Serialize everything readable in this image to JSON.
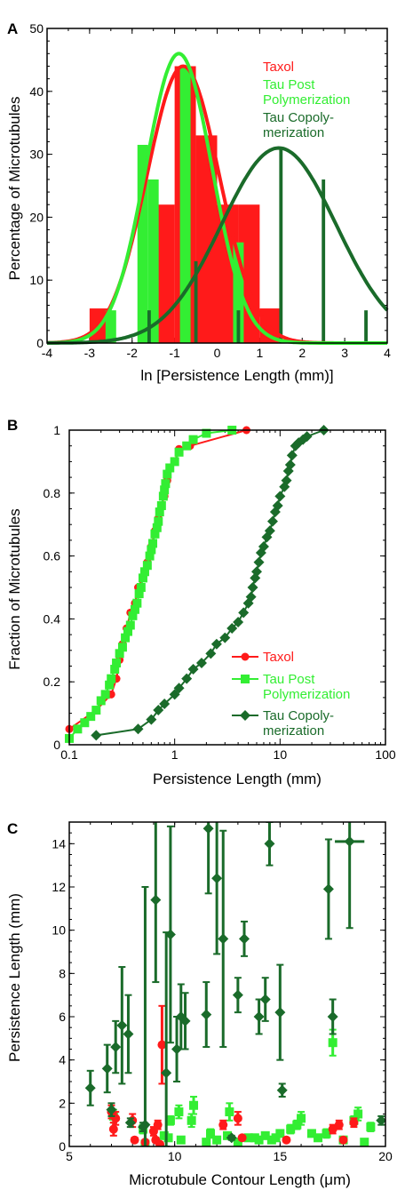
{
  "colors": {
    "taxol": "#ff1a1a",
    "tau_post": "#33ee33",
    "tau_copoly": "#1a6b2a",
    "axis": "#000000"
  },
  "chart_data": [
    {
      "panel": "A",
      "type": "bar",
      "xlabel": "ln [Persistence Length (mm)]",
      "ylabel": "Percentage of Microtubules",
      "xlim": [
        -4,
        4
      ],
      "ylim": [
        0,
        50
      ],
      "xticks": [
        "-4",
        "-3",
        "-2",
        "-1",
        "0",
        "1",
        "2",
        "3",
        "4"
      ],
      "yticks": [
        "0",
        "10",
        "20",
        "30",
        "40",
        "50"
      ],
      "legend_position": "top-right",
      "legend": [
        "Taxol",
        "Tau Post",
        "Polymerization",
        "Tau Copoly-",
        "merization"
      ],
      "series": [
        {
          "name": "Taxol",
          "bin_width": 0.5,
          "bins": [
            [
              -2.75,
              5.5
            ],
            [
              -2.25,
              0
            ],
            [
              -1.75,
              0
            ],
            [
              -1.25,
              22
            ],
            [
              -0.75,
              44
            ],
            [
              -0.25,
              33
            ],
            [
              0.25,
              22
            ],
            [
              0.75,
              22
            ],
            [
              1.25,
              5.5
            ]
          ],
          "fit": {
            "mean": -0.8,
            "sd": 0.85,
            "peak": 44
          }
        },
        {
          "name": "Tau Post Polymerization",
          "bin_width": 0.25,
          "bins": [
            [
              -2.5,
              5.2
            ],
            [
              -1.75,
              31.5
            ],
            [
              -1.5,
              26
            ],
            [
              -0.75,
              44
            ],
            [
              0.5,
              16
            ],
            [
              0.75,
              0
            ]
          ],
          "fit": {
            "mean": -0.9,
            "sd": 0.78,
            "peak": 46
          }
        },
        {
          "name": "Tau Copolymerization",
          "bin_width": 0.08,
          "bins": [
            [
              -1.6,
              5.2
            ],
            [
              -0.5,
              13
            ],
            [
              0.5,
              5.2
            ],
            [
              1.5,
              31
            ],
            [
              2.5,
              26
            ],
            [
              3.5,
              5.2
            ]
          ],
          "fit": {
            "mean": 1.45,
            "sd": 1.35,
            "peak": 31
          }
        }
      ]
    },
    {
      "panel": "B",
      "type": "line",
      "xscale": "log",
      "xlabel": "Persistence Length (mm)",
      "ylabel": "Fraction of Microtubules",
      "xlim": [
        0.1,
        100
      ],
      "ylim": [
        0,
        1
      ],
      "xticks": [
        "0.1",
        "1",
        "10",
        "100"
      ],
      "yticks": [
        "0",
        "0.2",
        "0.4",
        "0.6",
        "0.8",
        "1"
      ],
      "legend_position": "lower-right",
      "legend": [
        "Taxol",
        "Tau Post",
        "Polymerization",
        "Tau Copoly-",
        "merization"
      ],
      "series": [
        {
          "name": "Taxol",
          "x": [
            0.1,
            0.18,
            0.25,
            0.28,
            0.3,
            0.32,
            0.35,
            0.38,
            0.42,
            0.45,
            0.5,
            0.55,
            0.6,
            0.65,
            0.7,
            0.75,
            0.8,
            0.85,
            0.9,
            1.0,
            1.1,
            1.4,
            4.8
          ],
          "y": [
            0.05,
            0.11,
            0.16,
            0.21,
            0.27,
            0.32,
            0.37,
            0.42,
            0.45,
            0.5,
            0.53,
            0.58,
            0.63,
            0.68,
            0.72,
            0.76,
            0.79,
            0.84,
            0.88,
            0.9,
            0.94,
            0.95,
            1.0
          ]
        },
        {
          "name": "Tau Post Polymerization",
          "x": [
            0.1,
            0.12,
            0.14,
            0.16,
            0.18,
            0.2,
            0.22,
            0.24,
            0.25,
            0.27,
            0.28,
            0.3,
            0.32,
            0.34,
            0.36,
            0.38,
            0.4,
            0.42,
            0.44,
            0.46,
            0.48,
            0.5,
            0.52,
            0.55,
            0.58,
            0.6,
            0.62,
            0.65,
            0.68,
            0.7,
            0.72,
            0.75,
            0.78,
            0.8,
            0.82,
            0.85,
            0.9,
            1.0,
            1.1,
            1.3,
            1.5,
            2.0,
            3.5
          ],
          "y": [
            0.02,
            0.05,
            0.07,
            0.09,
            0.11,
            0.14,
            0.16,
            0.19,
            0.21,
            0.24,
            0.26,
            0.29,
            0.31,
            0.34,
            0.36,
            0.38,
            0.41,
            0.43,
            0.45,
            0.48,
            0.5,
            0.53,
            0.55,
            0.57,
            0.6,
            0.62,
            0.64,
            0.67,
            0.69,
            0.71,
            0.74,
            0.76,
            0.79,
            0.81,
            0.83,
            0.86,
            0.88,
            0.9,
            0.93,
            0.95,
            0.97,
            0.99,
            1.0
          ]
        },
        {
          "name": "Tau Copolymerization",
          "x": [
            0.18,
            0.45,
            0.6,
            0.7,
            0.8,
            1.0,
            1.1,
            1.3,
            1.5,
            1.8,
            2.2,
            2.5,
            3.0,
            3.5,
            4.0,
            4.5,
            5.0,
            5.3,
            5.5,
            5.8,
            6.0,
            6.3,
            6.6,
            7.0,
            7.5,
            8.0,
            8.5,
            9.0,
            9.5,
            10.0,
            11.0,
            11.5,
            12.0,
            12.5,
            13.0,
            14.0,
            15.0,
            16.5,
            18.0,
            26.0
          ],
          "y": [
            0.03,
            0.05,
            0.08,
            0.11,
            0.13,
            0.16,
            0.18,
            0.21,
            0.24,
            0.26,
            0.29,
            0.32,
            0.34,
            0.37,
            0.39,
            0.42,
            0.45,
            0.47,
            0.5,
            0.53,
            0.55,
            0.58,
            0.61,
            0.63,
            0.66,
            0.68,
            0.71,
            0.74,
            0.76,
            0.79,
            0.82,
            0.84,
            0.87,
            0.89,
            0.92,
            0.95,
            0.96,
            0.97,
            0.98,
            1.0
          ]
        }
      ]
    },
    {
      "panel": "C",
      "type": "scatter",
      "xlabel": "Microtubule Contour Length (μm)",
      "ylabel": "Persistence Length (mm)",
      "xlim": [
        5,
        20
      ],
      "ylim": [
        0,
        15
      ],
      "xticks": [
        "5",
        "10",
        "15",
        "20"
      ],
      "yticks": [
        "0",
        "2",
        "4",
        "6",
        "8",
        "10",
        "12",
        "14"
      ],
      "series": [
        {
          "name": "Taxol",
          "marker": "circle",
          "points": [
            [
              7.0,
              1.6,
              0.3
            ],
            [
              7.1,
              0.8,
              0.3
            ],
            [
              7.2,
              1.3,
              0.3
            ],
            [
              8.0,
              1.2,
              0.3
            ],
            [
              8.1,
              0.3,
              0.1
            ],
            [
              8.6,
              0.2,
              0.1
            ],
            [
              9.0,
              0.7,
              0.2
            ],
            [
              9.1,
              0.3,
              0.1
            ],
            [
              9.2,
              1.0,
              0.2
            ],
            [
              9.3,
              0.1,
              0.05
            ],
            [
              9.4,
              4.7,
              1.8
            ],
            [
              12.3,
              1.0,
              0.2
            ],
            [
              13.0,
              1.3,
              0.3
            ],
            [
              13.2,
              0.4,
              0.1
            ],
            [
              15.3,
              0.3,
              0.1
            ],
            [
              17.5,
              0.8,
              0.2
            ],
            [
              17.8,
              1.0,
              0.2
            ],
            [
              18.0,
              0.3,
              0.1
            ],
            [
              18.5,
              1.1,
              0.2
            ]
          ]
        },
        {
          "name": "Tau Post Polymerization",
          "marker": "square",
          "points": [
            [
              7.1,
              1.4,
              0.3
            ],
            [
              8.5,
              0.8,
              0.2
            ],
            [
              8.6,
              0.1,
              0.05
            ],
            [
              9.5,
              0.5,
              0.1
            ],
            [
              9.7,
              0.4,
              0.1
            ],
            [
              9.8,
              1.2,
              0.2
            ],
            [
              10.2,
              1.6,
              0.3
            ],
            [
              10.3,
              0.3,
              0.1
            ],
            [
              10.8,
              1.2,
              0.3
            ],
            [
              10.9,
              1.9,
              0.4
            ],
            [
              11.5,
              0.2,
              0.05
            ],
            [
              11.7,
              0.6,
              0.2
            ],
            [
              12.0,
              0.3,
              0.1
            ],
            [
              12.5,
              0.5,
              0.1
            ],
            [
              12.6,
              1.6,
              0.4
            ],
            [
              13.0,
              0.2,
              0.05
            ],
            [
              13.5,
              0.4,
              0.1
            ],
            [
              13.8,
              0.4,
              0.1
            ],
            [
              14.0,
              0.3,
              0.1
            ],
            [
              14.3,
              0.5,
              0.1
            ],
            [
              14.6,
              0.3,
              0.1
            ],
            [
              14.8,
              0.4,
              0.1
            ],
            [
              15.0,
              0.6,
              0.1
            ],
            [
              15.5,
              0.8,
              0.2
            ],
            [
              15.8,
              1.0,
              0.2
            ],
            [
              16.0,
              1.3,
              0.3
            ],
            [
              16.5,
              0.6,
              0.1
            ],
            [
              16.8,
              0.4,
              0.1
            ],
            [
              17.2,
              0.6,
              0.2
            ],
            [
              17.5,
              4.8,
              0.6
            ],
            [
              18.0,
              0.3,
              0.1
            ],
            [
              18.5,
              1.2,
              0.2
            ],
            [
              18.7,
              1.5,
              0.3
            ],
            [
              19.0,
              0.2,
              0.05
            ],
            [
              19.3,
              0.9,
              0.2
            ]
          ]
        },
        {
          "name": "Tau Copolymerization",
          "marker": "diamond",
          "points": [
            [
              6.0,
              2.7,
              0.8
            ],
            [
              6.8,
              3.6,
              1.1
            ],
            [
              7.0,
              1.7,
              0.3
            ],
            [
              7.2,
              4.6,
              1.2
            ],
            [
              7.5,
              5.6,
              2.7
            ],
            [
              7.8,
              5.2,
              1.8
            ],
            [
              7.9,
              1.1,
              0.2
            ],
            [
              8.5,
              0.9,
              0.2
            ],
            [
              8.6,
              1.0,
              11.0
            ],
            [
              9.1,
              11.4,
              3.8
            ],
            [
              9.6,
              3.4,
              6.5
            ],
            [
              9.8,
              9.8,
              5.0
            ],
            [
              10.1,
              4.5,
              1.5
            ],
            [
              10.3,
              6.0,
              1.5
            ],
            [
              10.5,
              5.8,
              1.3
            ],
            [
              11.5,
              6.1,
              1.5
            ],
            [
              11.6,
              14.7,
              3.0
            ],
            [
              12.0,
              12.4,
              3.5
            ],
            [
              12.3,
              9.6,
              5.0
            ],
            [
              12.7,
              0.4,
              0.1
            ],
            [
              13.0,
              7.0,
              0.8
            ],
            [
              13.3,
              9.6,
              0.8
            ],
            [
              14.0,
              6.0,
              0.8
            ],
            [
              14.3,
              6.8,
              1.0
            ],
            [
              14.5,
              14.0,
              1.0
            ],
            [
              15.0,
              6.2,
              2.2
            ],
            [
              15.1,
              2.6,
              0.3
            ],
            [
              17.3,
              11.9,
              2.3
            ],
            [
              17.5,
              6.0,
              0.8
            ],
            [
              18.3,
              14.1,
              4.0
            ],
            [
              19.8,
              1.2,
              0.2
            ]
          ]
        }
      ]
    }
  ],
  "panelA": {
    "letter": "A",
    "xlabel": "ln [Persistence Length (mm)]",
    "ylabel": "Percentage of Microtubules",
    "legend": {
      "l1": "Taxol",
      "l2": "Tau Post",
      "l3": "Polymerization",
      "l4": "Tau Copoly-",
      "l5": "merization"
    }
  },
  "panelB": {
    "letter": "B",
    "xlabel": "Persistence Length (mm)",
    "ylabel": "Fraction of Microtubules",
    "legend": {
      "l1": "Taxol",
      "l2": "Tau Post",
      "l3": "Polymerization",
      "l4": "Tau Copoly-",
      "l5": "merization"
    }
  },
  "panelC": {
    "letter": "C",
    "xlabel": "Microtubule Contour Length (μm)",
    "ylabel": "Persistence Length (mm)"
  }
}
